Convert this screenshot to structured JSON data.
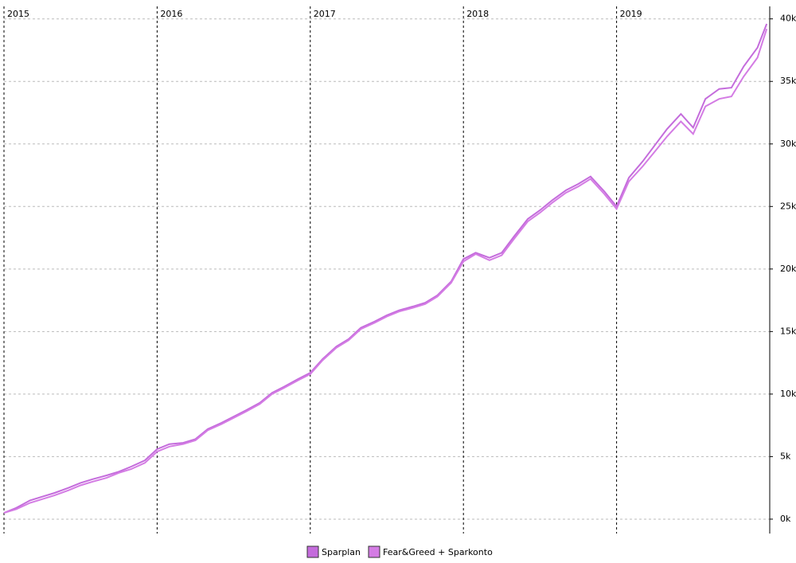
{
  "chart_data": {
    "type": "line",
    "x": [
      2015.0,
      2015.08,
      2015.17,
      2015.25,
      2015.33,
      2015.42,
      2015.5,
      2015.58,
      2015.67,
      2015.75,
      2015.83,
      2015.92,
      2016.0,
      2016.08,
      2016.17,
      2016.25,
      2016.33,
      2016.42,
      2016.5,
      2016.58,
      2016.67,
      2016.75,
      2016.83,
      2016.92,
      2017.0,
      2017.08,
      2017.17,
      2017.25,
      2017.33,
      2017.42,
      2017.5,
      2017.58,
      2017.67,
      2017.75,
      2017.83,
      2017.92,
      2018.0,
      2018.08,
      2018.17,
      2018.25,
      2018.33,
      2018.42,
      2018.5,
      2018.58,
      2018.67,
      2018.75,
      2018.83,
      2018.92,
      2019.0,
      2019.08,
      2019.17,
      2019.25,
      2019.33,
      2019.42,
      2019.5,
      2019.58,
      2019.67,
      2019.75,
      2019.83,
      2019.92,
      2019.98
    ],
    "series": [
      {
        "name": "Sparplan",
        "color": "#c46cdc",
        "values": [
          0.5,
          0.9,
          1.5,
          1.8,
          2.1,
          2.5,
          2.9,
          3.2,
          3.5,
          3.8,
          4.2,
          4.7,
          5.6,
          6.0,
          6.1,
          6.4,
          7.2,
          7.7,
          8.2,
          8.7,
          9.3,
          10.1,
          10.6,
          11.2,
          11.7,
          12.8,
          13.8,
          14.4,
          15.3,
          15.8,
          16.3,
          16.7,
          17.0,
          17.3,
          17.9,
          19.0,
          20.8,
          21.3,
          20.9,
          21.3,
          22.6,
          24.0,
          24.7,
          25.5,
          26.3,
          26.8,
          27.4,
          26.2,
          25.0,
          27.3,
          28.6,
          29.9,
          31.2,
          32.4,
          31.3,
          33.6,
          34.4,
          34.5,
          36.2,
          37.7,
          39.6
        ]
      },
      {
        "name": "Fear&Greed + Sparkonto",
        "color": "#d47ce4",
        "values": [
          0.5,
          0.8,
          1.3,
          1.6,
          1.9,
          2.3,
          2.7,
          3.0,
          3.3,
          3.7,
          4.0,
          4.5,
          5.4,
          5.8,
          6.0,
          6.3,
          7.1,
          7.6,
          8.1,
          8.6,
          9.2,
          10.0,
          10.5,
          11.1,
          11.6,
          12.7,
          13.7,
          14.3,
          15.2,
          15.7,
          16.2,
          16.6,
          16.9,
          17.2,
          17.8,
          18.9,
          20.6,
          21.2,
          20.7,
          21.1,
          22.4,
          23.8,
          24.5,
          25.3,
          26.1,
          26.6,
          27.2,
          26.0,
          24.8,
          27.0,
          28.2,
          29.4,
          30.6,
          31.8,
          30.8,
          33.0,
          33.6,
          33.8,
          35.4,
          36.9,
          39.2
        ]
      }
    ],
    "xlim": [
      2015,
      2020
    ],
    "xticks": [
      2015,
      2016,
      2017,
      2018,
      2019
    ],
    "ylim": [
      -1.15,
      41.0
    ],
    "yticks": [
      {
        "value": 0,
        "label": "0k"
      },
      {
        "value": 5,
        "label": "5k"
      },
      {
        "value": 10,
        "label": "10k"
      },
      {
        "value": 15,
        "label": "15k"
      },
      {
        "value": 20,
        "label": "20k"
      },
      {
        "value": 25,
        "label": "25k"
      },
      {
        "value": 30,
        "label": "30k"
      },
      {
        "value": 35,
        "label": "35k"
      },
      {
        "value": 40,
        "label": "40k"
      }
    ],
    "grid": true,
    "legend": "bottom"
  }
}
